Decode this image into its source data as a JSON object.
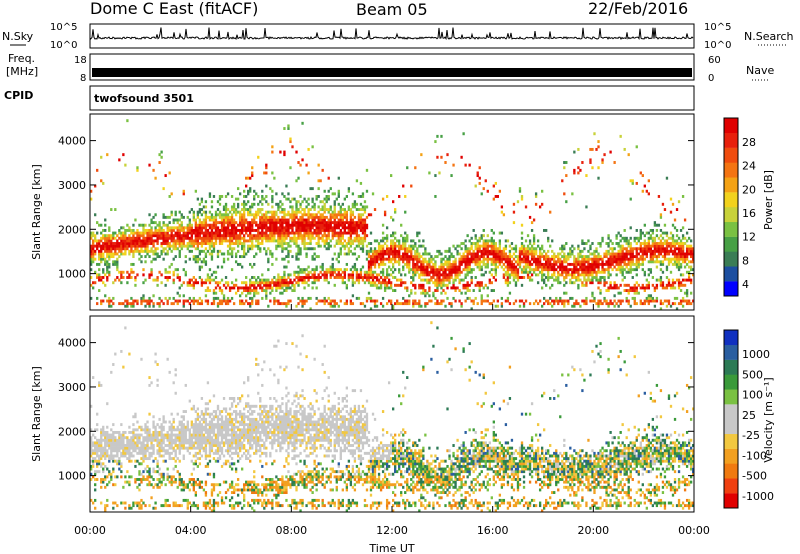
{
  "header": {
    "title": "Dome C East (fitACF)",
    "beam": "Beam 05",
    "date": "22/Feb/2016"
  },
  "strips": {
    "nsky_label": "N.Sky",
    "nsearch_label": "N.Search",
    "nsky_ticks": [
      "10^5",
      "10^0"
    ],
    "nsearch_ticks": [
      "10^5",
      "10^0"
    ],
    "freq_label": "Freq.",
    "freq_unit": "[MHz]",
    "freq_ticks": [
      "18",
      "8"
    ],
    "nave_label": "Nave",
    "nave_ticks": [
      "60",
      "0"
    ],
    "cpid_label": "CPID",
    "cpid_value": "twofsound 3501"
  },
  "chart_data": [
    {
      "type": "heatmap",
      "panel": "power",
      "ylabel": "Slant Range [km]",
      "xlabel": "",
      "x_ticks": [
        "00:00",
        "04:00",
        "08:00",
        "12:00",
        "16:00",
        "20:00",
        "00:00"
      ],
      "x_hours": [
        0,
        4,
        8,
        12,
        16,
        20,
        24
      ],
      "y_ticks": [
        1000,
        2000,
        3000,
        4000
      ],
      "ylim": [
        180,
        4600
      ],
      "xlim": [
        0,
        24
      ],
      "colorbar": {
        "label": "Power [dB]",
        "ticks": [
          "28",
          "24",
          "20",
          "16",
          "12",
          "8",
          "4"
        ],
        "colors": [
          "#0000ff",
          "#1c4fa0",
          "#3a7d55",
          "#47a045",
          "#7ac142",
          "#c8d23a",
          "#f2d21d",
          "#f4a215",
          "#f47412",
          "#f04c0e",
          "#e8200c",
          "#e00000"
        ]
      }
    },
    {
      "type": "heatmap",
      "panel": "velocity",
      "ylabel": "Slant Range [km]",
      "xlabel": "Time UT",
      "x_ticks": [
        "00:00",
        "04:00",
        "08:00",
        "12:00",
        "16:00",
        "20:00",
        "00:00"
      ],
      "x_hours": [
        0,
        4,
        8,
        12,
        16,
        20,
        24
      ],
      "y_ticks": [
        1000,
        2000,
        3000,
        4000
      ],
      "ylim": [
        180,
        4600
      ],
      "xlim": [
        0,
        24
      ],
      "colorbar": {
        "label": "Velocity [m s⁻¹]",
        "ticks": [
          "1000",
          "500",
          "100",
          "25",
          "-25",
          "-100",
          "-500",
          "-1000"
        ],
        "colors": [
          "#e00000",
          "#f04010",
          "#f07a10",
          "#f2a020",
          "#f2c840",
          "#c8c8c8",
          "#c8c8c8",
          "#7ac142",
          "#3a9a3a",
          "#2c7a55",
          "#2a5ea0",
          "#1030c0"
        ]
      }
    }
  ]
}
